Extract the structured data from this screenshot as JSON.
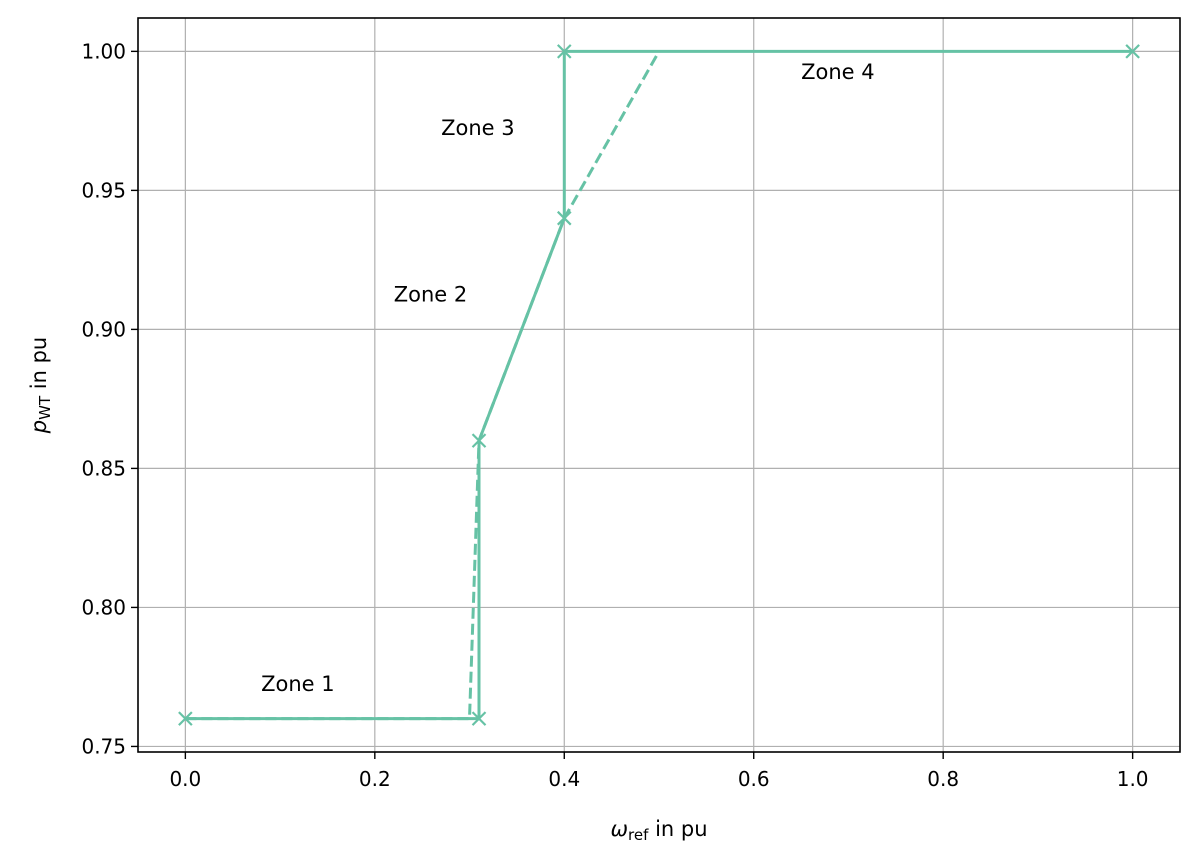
{
  "chart_data": {
    "type": "line",
    "title": "",
    "xlabel": {
      "symbol": "ω",
      "subscript": "ref",
      "suffix": " in pu"
    },
    "ylabel": {
      "symbol": "p",
      "subscript": "WT",
      "suffix": " in pu"
    },
    "xlim": [
      -0.05,
      1.05
    ],
    "ylim": [
      0.748,
      1.012
    ],
    "xticks": [
      0.0,
      0.2,
      0.4,
      0.6,
      0.8,
      1.0
    ],
    "xtick_labels": [
      "0.0",
      "0.2",
      "0.4",
      "0.6",
      "0.8",
      "1.0"
    ],
    "yticks": [
      0.75,
      0.8,
      0.85,
      0.9,
      0.95,
      1.0
    ],
    "ytick_labels": [
      "0.75",
      "0.80",
      "0.85",
      "0.90",
      "0.95",
      "1.00"
    ],
    "grid": true,
    "color": "#66c2a5",
    "series": [
      {
        "style": "solid",
        "markers": true,
        "x": [
          0.0,
          0.31,
          0.31,
          0.4,
          0.4,
          1.0
        ],
        "y": [
          0.76,
          0.76,
          0.86,
          0.94,
          1.0,
          1.0
        ]
      },
      {
        "style": "dashed",
        "markers": false,
        "x": [
          0.0,
          0.3,
          0.31,
          0.4,
          0.5
        ],
        "y": [
          0.76,
          0.76,
          0.86,
          0.94,
          1.0
        ]
      }
    ],
    "annotations": [
      {
        "text": "Zone 1",
        "x": 0.08,
        "y": 0.77
      },
      {
        "text": "Zone 2",
        "x": 0.22,
        "y": 0.91
      },
      {
        "text": "Zone 3",
        "x": 0.27,
        "y": 0.97
      },
      {
        "text": "Zone 4",
        "x": 0.65,
        "y": 0.99
      }
    ]
  }
}
